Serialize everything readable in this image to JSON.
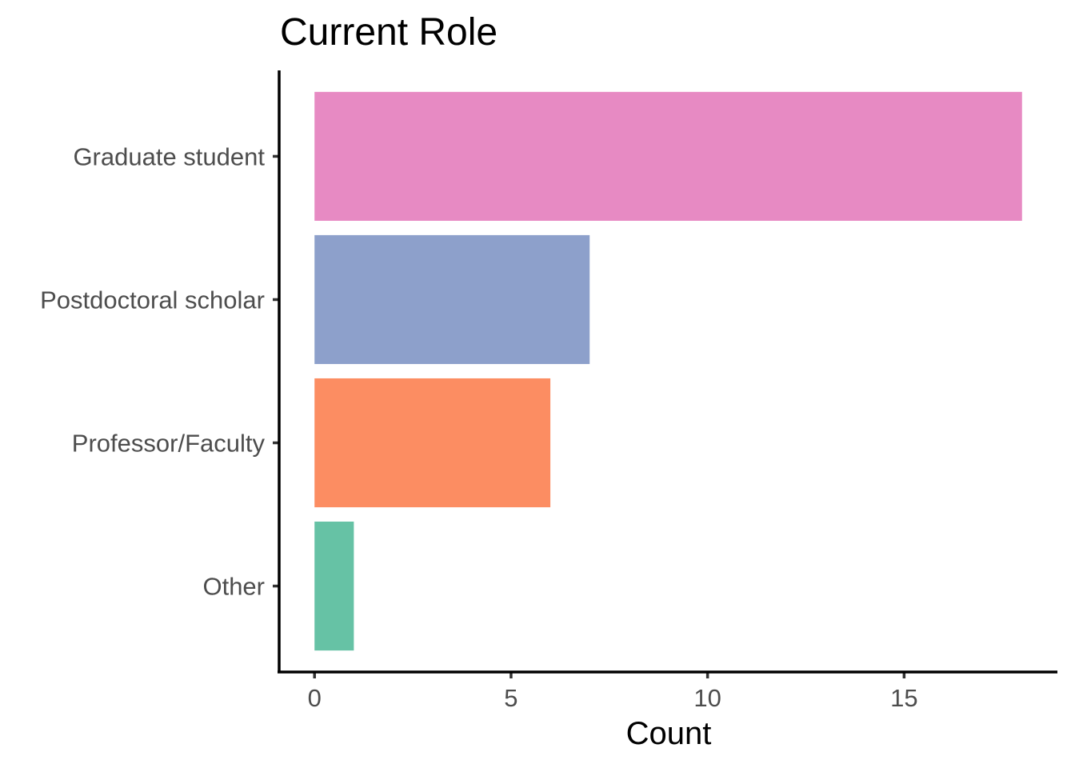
{
  "chart_data": {
    "type": "bar",
    "orientation": "horizontal",
    "title": "Current Role",
    "xlabel": "Count",
    "ylabel": "",
    "categories": [
      "Graduate student",
      "Postdoctoral scholar",
      "Professor/Faculty",
      "Other"
    ],
    "values": [
      18,
      7,
      6,
      1
    ],
    "colors": [
      "#e78ac3",
      "#8da0cb",
      "#fc8d62",
      "#66c2a5"
    ],
    "xlim": [
      -0.9,
      18.9
    ],
    "xticks": [
      0,
      5,
      10,
      15
    ],
    "xtick_labels": [
      "0",
      "5",
      "10",
      "15"
    ],
    "grid": false,
    "legend": "none"
  }
}
